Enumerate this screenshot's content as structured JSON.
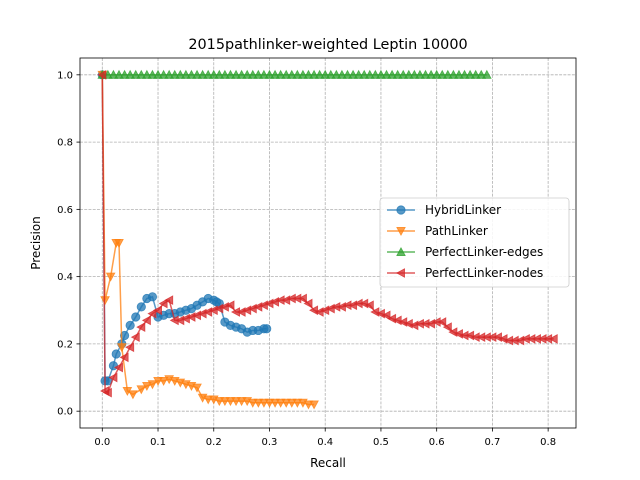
{
  "chart_data": {
    "type": "line",
    "title": "2015pathlinker-weighted Leptin 10000",
    "xlabel": "Recall",
    "ylabel": "Precision",
    "xlim": [
      -0.04,
      0.85
    ],
    "ylim": [
      -0.05,
      1.05
    ],
    "xticks": [
      0.0,
      0.1,
      0.2,
      0.3,
      0.4,
      0.5,
      0.6,
      0.7,
      0.8
    ],
    "xtick_labels": [
      "0.0",
      "0.1",
      "0.2",
      "0.3",
      "0.4",
      "0.5",
      "0.6",
      "0.7",
      "0.8"
    ],
    "yticks": [
      0.0,
      0.2,
      0.4,
      0.6,
      0.8,
      1.0
    ],
    "ytick_labels": [
      "0.0",
      "0.2",
      "0.4",
      "0.6",
      "0.8",
      "1.0"
    ],
    "grid": true,
    "legend_position": "center-right",
    "series": [
      {
        "name": "HybridLinker",
        "color": "#1f77b4",
        "marker": "circle",
        "x": [
          0.0,
          0.005,
          0.01,
          0.02,
          0.025,
          0.035,
          0.04,
          0.05,
          0.06,
          0.07,
          0.08,
          0.09,
          0.1,
          0.11,
          0.12,
          0.13,
          0.14,
          0.15,
          0.16,
          0.17,
          0.18,
          0.19,
          0.2,
          0.205,
          0.21,
          0.22,
          0.23,
          0.24,
          0.25,
          0.26,
          0.27,
          0.28,
          0.29,
          0.295
        ],
        "y": [
          1.0,
          0.09,
          0.09,
          0.135,
          0.17,
          0.2,
          0.225,
          0.255,
          0.28,
          0.31,
          0.335,
          0.34,
          0.28,
          0.285,
          0.29,
          0.29,
          0.295,
          0.3,
          0.305,
          0.315,
          0.325,
          0.335,
          0.33,
          0.325,
          0.32,
          0.265,
          0.255,
          0.25,
          0.245,
          0.235,
          0.24,
          0.24,
          0.245,
          0.245
        ]
      },
      {
        "name": "PathLinker",
        "color": "#ff7f0e",
        "marker": "triangle-down",
        "x": [
          0.0,
          0.005,
          0.015,
          0.025,
          0.03,
          0.035,
          0.045,
          0.055,
          0.07,
          0.08,
          0.09,
          0.1,
          0.11,
          0.12,
          0.13,
          0.14,
          0.15,
          0.16,
          0.17,
          0.18,
          0.19,
          0.2,
          0.21,
          0.22,
          0.23,
          0.24,
          0.25,
          0.26,
          0.27,
          0.28,
          0.29,
          0.3,
          0.31,
          0.32,
          0.33,
          0.34,
          0.35,
          0.36,
          0.37,
          0.38
        ],
        "y": [
          1.0,
          0.33,
          0.4,
          0.5,
          0.5,
          0.19,
          0.06,
          0.05,
          0.065,
          0.075,
          0.08,
          0.09,
          0.09,
          0.095,
          0.09,
          0.085,
          0.08,
          0.075,
          0.07,
          0.04,
          0.035,
          0.035,
          0.03,
          0.03,
          0.03,
          0.03,
          0.03,
          0.03,
          0.025,
          0.025,
          0.025,
          0.025,
          0.025,
          0.025,
          0.025,
          0.025,
          0.025,
          0.025,
          0.02,
          0.02
        ]
      },
      {
        "name": "PerfectLinker-edges",
        "color": "#2ca02c",
        "marker": "triangle-up",
        "x": [
          0.0,
          0.01,
          0.02,
          0.03,
          0.04,
          0.05,
          0.06,
          0.07,
          0.08,
          0.09,
          0.1,
          0.11,
          0.12,
          0.13,
          0.14,
          0.15,
          0.16,
          0.17,
          0.18,
          0.19,
          0.2,
          0.21,
          0.22,
          0.23,
          0.24,
          0.25,
          0.26,
          0.27,
          0.28,
          0.29,
          0.3,
          0.31,
          0.32,
          0.33,
          0.34,
          0.35,
          0.36,
          0.37,
          0.38,
          0.39,
          0.4,
          0.41,
          0.42,
          0.43,
          0.44,
          0.45,
          0.46,
          0.47,
          0.48,
          0.49,
          0.5,
          0.51,
          0.52,
          0.53,
          0.54,
          0.55,
          0.56,
          0.57,
          0.58,
          0.59,
          0.6,
          0.61,
          0.62,
          0.63,
          0.64,
          0.65,
          0.66,
          0.67,
          0.68,
          0.69
        ],
        "y": [
          1.0,
          1.0,
          1.0,
          1.0,
          1.0,
          1.0,
          1.0,
          1.0,
          1.0,
          1.0,
          1.0,
          1.0,
          1.0,
          1.0,
          1.0,
          1.0,
          1.0,
          1.0,
          1.0,
          1.0,
          1.0,
          1.0,
          1.0,
          1.0,
          1.0,
          1.0,
          1.0,
          1.0,
          1.0,
          1.0,
          1.0,
          1.0,
          1.0,
          1.0,
          1.0,
          1.0,
          1.0,
          1.0,
          1.0,
          1.0,
          1.0,
          1.0,
          1.0,
          1.0,
          1.0,
          1.0,
          1.0,
          1.0,
          1.0,
          1.0,
          1.0,
          1.0,
          1.0,
          1.0,
          1.0,
          1.0,
          1.0,
          1.0,
          1.0,
          1.0,
          1.0,
          1.0,
          1.0,
          1.0,
          1.0,
          1.0,
          1.0,
          1.0,
          1.0,
          1.0
        ]
      },
      {
        "name": "PerfectLinker-nodes",
        "color": "#d62728",
        "marker": "triangle-left",
        "x": [
          0.0,
          0.005,
          0.01,
          0.02,
          0.03,
          0.04,
          0.05,
          0.06,
          0.07,
          0.08,
          0.09,
          0.1,
          0.11,
          0.12,
          0.13,
          0.14,
          0.15,
          0.16,
          0.17,
          0.18,
          0.19,
          0.2,
          0.21,
          0.22,
          0.23,
          0.24,
          0.25,
          0.26,
          0.27,
          0.28,
          0.29,
          0.3,
          0.31,
          0.32,
          0.33,
          0.34,
          0.35,
          0.36,
          0.37,
          0.38,
          0.39,
          0.4,
          0.41,
          0.42,
          0.43,
          0.44,
          0.45,
          0.46,
          0.47,
          0.48,
          0.49,
          0.5,
          0.51,
          0.52,
          0.53,
          0.54,
          0.55,
          0.56,
          0.57,
          0.58,
          0.59,
          0.6,
          0.61,
          0.62,
          0.63,
          0.64,
          0.65,
          0.66,
          0.67,
          0.68,
          0.69,
          0.7,
          0.71,
          0.72,
          0.73,
          0.74,
          0.75,
          0.76,
          0.77,
          0.78,
          0.79,
          0.8,
          0.81
        ],
        "y": [
          1.0,
          0.06,
          0.055,
          0.1,
          0.13,
          0.16,
          0.19,
          0.22,
          0.25,
          0.27,
          0.29,
          0.3,
          0.32,
          0.33,
          0.27,
          0.27,
          0.275,
          0.28,
          0.285,
          0.29,
          0.295,
          0.3,
          0.305,
          0.31,
          0.315,
          0.295,
          0.295,
          0.3,
          0.305,
          0.31,
          0.315,
          0.32,
          0.325,
          0.33,
          0.33,
          0.335,
          0.335,
          0.335,
          0.32,
          0.3,
          0.295,
          0.3,
          0.305,
          0.31,
          0.31,
          0.315,
          0.315,
          0.32,
          0.32,
          0.315,
          0.295,
          0.29,
          0.285,
          0.275,
          0.27,
          0.265,
          0.26,
          0.255,
          0.26,
          0.26,
          0.26,
          0.265,
          0.265,
          0.25,
          0.235,
          0.23,
          0.225,
          0.225,
          0.22,
          0.22,
          0.22,
          0.22,
          0.22,
          0.215,
          0.21,
          0.21,
          0.21,
          0.215,
          0.215,
          0.215,
          0.215,
          0.215,
          0.215
        ]
      }
    ]
  }
}
